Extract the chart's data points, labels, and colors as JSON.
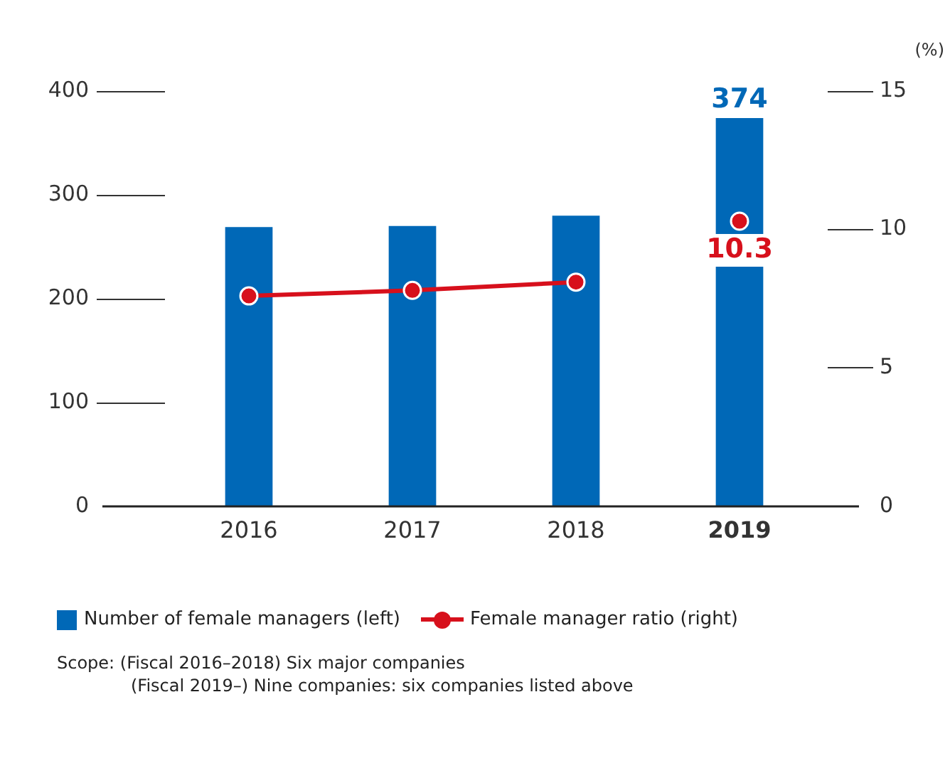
{
  "chart_data": {
    "type": "bar",
    "categories": [
      "2016",
      "2017",
      "2018",
      "2019"
    ],
    "series": [
      {
        "name": "Number of female managers (left)",
        "color": "#0068b7",
        "values": [
          269,
          270,
          280,
          374
        ],
        "value_labels": [
          null,
          null,
          null,
          "374"
        ]
      },
      {
        "type": "line",
        "name": "Female manager ratio (right)",
        "color": "#d7101c",
        "axis": "y2",
        "values": [
          7.6,
          7.8,
          8.1,
          null
        ]
      },
      {
        "type": "scatter",
        "color": "#d7101c",
        "axis": "y2",
        "values": [
          null,
          null,
          null,
          10.3
        ],
        "value_labels": [
          null,
          null,
          null,
          "10.3"
        ]
      }
    ],
    "ylim": [
      0,
      400
    ],
    "yticks": [
      0,
      100,
      200,
      300,
      400
    ],
    "y2lim": [
      0,
      15
    ],
    "y2ticks": [
      0,
      5,
      10,
      15
    ],
    "y2label": "(%)",
    "grid": false,
    "legend": "bottom",
    "marker": "circle",
    "annotations": [
      "Scope: (Fiscal 2016–2018) Six major companies",
      "(Fiscal 2019–) Nine companies: six companies listed above"
    ]
  }
}
